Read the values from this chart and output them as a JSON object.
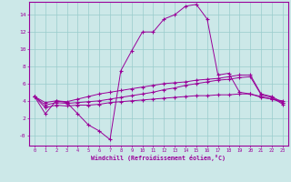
{
  "xlabel": "Windchill (Refroidissement éolien,°C)",
  "bg_color": "#cce8e8",
  "grid_color": "#99cccc",
  "line_color": "#990099",
  "xlim": [
    -0.5,
    23.5
  ],
  "ylim": [
    -1.2,
    15.5
  ],
  "xticks": [
    0,
    1,
    2,
    3,
    4,
    5,
    6,
    7,
    8,
    9,
    10,
    11,
    12,
    13,
    14,
    15,
    16,
    17,
    18,
    19,
    20,
    21,
    22,
    23
  ],
  "yticks": [
    0,
    2,
    4,
    6,
    8,
    10,
    12,
    14
  ],
  "ytick_labels": [
    "-0",
    "2",
    "4",
    "6",
    "8",
    "10",
    "12",
    "14"
  ],
  "line1_x": [
    0,
    1,
    2,
    3,
    4,
    5,
    6,
    7,
    8,
    9,
    10,
    11,
    12,
    13,
    14,
    15,
    16,
    17,
    18,
    19,
    20,
    21,
    22,
    23
  ],
  "line1_y": [
    4.5,
    2.5,
    4.0,
    3.8,
    2.5,
    1.2,
    0.5,
    -0.5,
    7.5,
    9.8,
    12.0,
    12.0,
    13.5,
    14.0,
    15.0,
    15.2,
    13.5,
    7.0,
    7.2,
    5.0,
    4.8,
    4.5,
    4.2,
    4.0
  ],
  "line2_x": [
    0,
    1,
    2,
    3,
    4,
    5,
    6,
    7,
    8,
    9,
    10,
    11,
    12,
    13,
    14,
    15,
    16,
    17,
    18,
    19,
    20,
    21,
    22,
    23
  ],
  "line2_y": [
    4.5,
    3.8,
    4.0,
    3.9,
    4.2,
    4.5,
    4.8,
    5.0,
    5.2,
    5.4,
    5.6,
    5.8,
    6.0,
    6.1,
    6.2,
    6.4,
    6.5,
    6.6,
    6.8,
    7.0,
    7.0,
    4.8,
    4.5,
    3.8
  ],
  "line3_x": [
    0,
    1,
    2,
    3,
    4,
    5,
    6,
    7,
    8,
    9,
    10,
    11,
    12,
    13,
    14,
    15,
    16,
    17,
    18,
    19,
    20,
    21,
    22,
    23
  ],
  "line3_y": [
    4.5,
    3.5,
    3.8,
    3.7,
    3.8,
    3.9,
    4.0,
    4.2,
    4.4,
    4.6,
    4.8,
    5.0,
    5.3,
    5.5,
    5.8,
    6.0,
    6.2,
    6.4,
    6.5,
    6.7,
    6.8,
    4.7,
    4.4,
    3.6
  ],
  "line4_x": [
    0,
    1,
    2,
    3,
    4,
    5,
    6,
    7,
    8,
    9,
    10,
    11,
    12,
    13,
    14,
    15,
    16,
    17,
    18,
    19,
    20,
    21,
    22,
    23
  ],
  "line4_y": [
    4.5,
    3.2,
    3.5,
    3.4,
    3.5,
    3.5,
    3.6,
    3.8,
    3.9,
    4.0,
    4.1,
    4.2,
    4.3,
    4.4,
    4.5,
    4.6,
    4.6,
    4.7,
    4.7,
    4.8,
    4.8,
    4.4,
    4.2,
    3.8
  ]
}
